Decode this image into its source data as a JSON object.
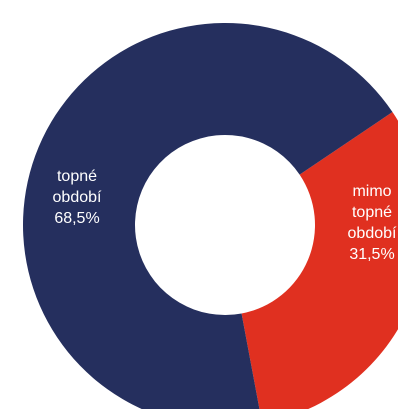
{
  "chart_data": {
    "type": "pie",
    "variant": "donut",
    "start_angle_deg": 56,
    "direction": "clockwise",
    "slices": [
      {
        "label_lines": [
          "mimo",
          "topné",
          "období",
          "31,5%"
        ],
        "value": 31.5,
        "color": "#E03020"
      },
      {
        "label_lines": [
          "topné",
          "období",
          "68,5%"
        ],
        "value": 68.5,
        "color": "#252F5E"
      }
    ]
  }
}
